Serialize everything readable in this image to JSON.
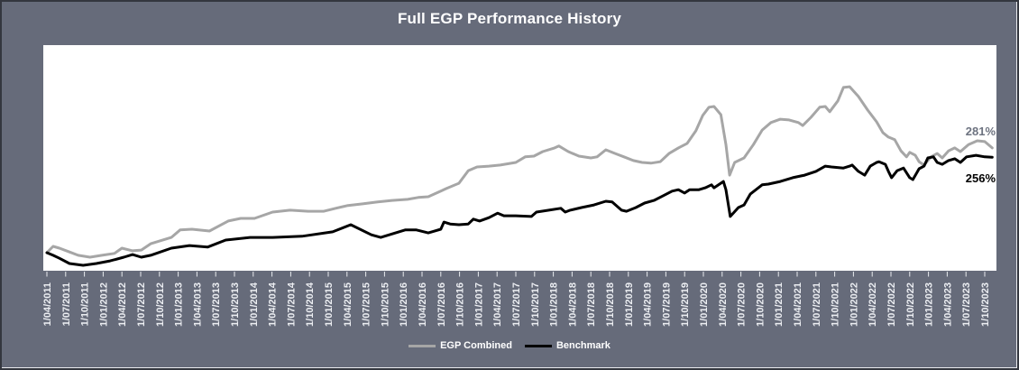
{
  "title": "Full EGP Performance History",
  "end_labels": {
    "egp_combined": "281%",
    "benchmark": "256%"
  },
  "legend": {
    "items": [
      {
        "label": "EGP Combined",
        "color": "#a6a6a6"
      },
      {
        "label": "Benchmark",
        "color": "#000000"
      }
    ]
  },
  "colors": {
    "background": "#666b7a",
    "plot_background": "#ffffff",
    "title_text": "#ffffff",
    "axis_label_text": "#eceef2",
    "tick_mark": "#e8eaee",
    "egp_line": "#a6a6a6",
    "benchmark_line": "#000000",
    "egp_end_label": "#6d7380",
    "frame_border": "#33363e"
  },
  "chart_data": {
    "type": "line",
    "title": "Full EGP Performance History",
    "xlabel": "",
    "ylabel": "",
    "grid": false,
    "y_axis_labels_visible": false,
    "legend_position": "bottom",
    "x_unit": "months since 1/04/2011",
    "x_range": [
      0,
      151.2
    ],
    "y_range_pct": [
      -48,
      557
    ],
    "x_tick_labels": [
      "1/04/2011",
      "1/07/2011",
      "1/10/2011",
      "1/01/2012",
      "1/04/2012",
      "1/07/2012",
      "1/10/2012",
      "1/01/2013",
      "1/04/2013",
      "1/07/2013",
      "1/10/2013",
      "1/01/2014",
      "1/04/2014",
      "1/07/2014",
      "1/10/2014",
      "1/01/2015",
      "1/04/2015",
      "1/07/2015",
      "1/10/2015",
      "1/01/2016",
      "1/04/2016",
      "1/07/2016",
      "1/10/2016",
      "1/01/2017",
      "1/04/2017",
      "1/07/2017",
      "1/10/2017",
      "1/01/2018",
      "1/04/2018",
      "1/07/2018",
      "1/10/2018",
      "1/01/2019",
      "1/04/2019",
      "1/07/2019",
      "1/10/2019",
      "1/01/2020",
      "1/04/2020",
      "1/07/2020",
      "1/10/2020",
      "1/01/2021",
      "1/04/2021",
      "1/07/2021",
      "1/10/2021",
      "1/01/2022",
      "1/04/2022",
      "1/07/2022",
      "1/10/2022",
      "1/01/2023",
      "1/04/2023",
      "1/07/2023",
      "1/10/2023"
    ],
    "series": [
      {
        "name": "EGP Combined",
        "color": "#a6a6a6",
        "end_label": "281%",
        "points": [
          [
            0,
            0
          ],
          [
            1,
            17
          ],
          [
            2,
            12
          ],
          [
            3.6,
            2
          ],
          [
            5,
            -7
          ],
          [
            6.9,
            -12
          ],
          [
            8.8,
            -7
          ],
          [
            10.8,
            -2
          ],
          [
            12,
            12
          ],
          [
            13.7,
            5
          ],
          [
            15.1,
            7
          ],
          [
            16.6,
            24
          ],
          [
            19.9,
            41
          ],
          [
            21.3,
            61
          ],
          [
            23.2,
            63
          ],
          [
            26,
            58
          ],
          [
            29,
            85
          ],
          [
            31,
            92
          ],
          [
            33.2,
            92
          ],
          [
            36.1,
            109
          ],
          [
            38.9,
            114
          ],
          [
            41.8,
            111
          ],
          [
            44.3,
            111
          ],
          [
            46.2,
            119
          ],
          [
            48,
            126
          ],
          [
            50.5,
            131
          ],
          [
            52.9,
            136
          ],
          [
            55.2,
            140
          ],
          [
            57.7,
            143
          ],
          [
            59.4,
            148
          ],
          [
            61,
            150
          ],
          [
            63,
            165
          ],
          [
            63.9,
            172
          ],
          [
            65.9,
            186
          ],
          [
            67.4,
            220
          ],
          [
            68.8,
            230
          ],
          [
            70.7,
            232
          ],
          [
            72.5,
            235
          ],
          [
            75,
            242
          ],
          [
            76.5,
            257
          ],
          [
            77.9,
            259
          ],
          [
            79.3,
            271
          ],
          [
            81.2,
            281
          ],
          [
            81.9,
            286
          ],
          [
            83.4,
            271
          ],
          [
            85.1,
            259
          ],
          [
            87,
            254
          ],
          [
            88,
            257
          ],
          [
            89.4,
            276
          ],
          [
            90.9,
            266
          ],
          [
            92.3,
            257
          ],
          [
            93.8,
            247
          ],
          [
            95.2,
            242
          ],
          [
            96.6,
            240
          ],
          [
            98.1,
            244
          ],
          [
            99.5,
            266
          ],
          [
            101,
            281
          ],
          [
            102.4,
            293
          ],
          [
            103.8,
            327
          ],
          [
            104.9,
            368
          ],
          [
            105.9,
            390
          ],
          [
            106.7,
            392
          ],
          [
            107.8,
            370
          ],
          [
            108.6,
            290
          ],
          [
            109.2,
            208
          ],
          [
            110,
            242
          ],
          [
            111.5,
            254
          ],
          [
            113,
            290
          ],
          [
            114.4,
            329
          ],
          [
            115.8,
            349
          ],
          [
            117.3,
            358
          ],
          [
            118.7,
            356
          ],
          [
            120.2,
            349
          ],
          [
            120.9,
            341
          ],
          [
            122.2,
            363
          ],
          [
            123.6,
            390
          ],
          [
            124.5,
            392
          ],
          [
            125.2,
            378
          ],
          [
            126.5,
            407
          ],
          [
            127.4,
            443
          ],
          [
            128.4,
            445
          ],
          [
            129.8,
            419
          ],
          [
            131.3,
            382
          ],
          [
            132.7,
            351
          ],
          [
            133.7,
            322
          ],
          [
            134.6,
            310
          ],
          [
            135.6,
            303
          ],
          [
            136.6,
            273
          ],
          [
            137.5,
            257
          ],
          [
            138,
            269
          ],
          [
            138.9,
            261
          ],
          [
            139.5,
            244
          ],
          [
            140.3,
            235
          ],
          [
            141.4,
            257
          ],
          [
            142.4,
            266
          ],
          [
            143.2,
            254
          ],
          [
            144.2,
            273
          ],
          [
            145.2,
            281
          ],
          [
            146.1,
            271
          ],
          [
            147.4,
            290
          ],
          [
            148.8,
            300
          ],
          [
            150,
            298
          ],
          [
            151.2,
            281
          ]
        ]
      },
      {
        "name": "Benchmark",
        "color": "#000000",
        "end_label": "256%",
        "points": [
          [
            0,
            0
          ],
          [
            1,
            -7
          ],
          [
            2,
            -15
          ],
          [
            3.6,
            -29
          ],
          [
            5.8,
            -34
          ],
          [
            7.9,
            -29
          ],
          [
            10.1,
            -22
          ],
          [
            12.3,
            -12
          ],
          [
            13.7,
            -5
          ],
          [
            15.1,
            -12
          ],
          [
            16.6,
            -7
          ],
          [
            19.9,
            12
          ],
          [
            22.8,
            19
          ],
          [
            25.7,
            15
          ],
          [
            28.6,
            34
          ],
          [
            32.5,
            41
          ],
          [
            36.1,
            41
          ],
          [
            40.8,
            44
          ],
          [
            45.7,
            56
          ],
          [
            48.6,
            75
          ],
          [
            51.9,
            48
          ],
          [
            53.4,
            41
          ],
          [
            57.3,
            61
          ],
          [
            59.1,
            61
          ],
          [
            61,
            53
          ],
          [
            63,
            63
          ],
          [
            63.5,
            82
          ],
          [
            64.5,
            77
          ],
          [
            65.9,
            75
          ],
          [
            67.4,
            77
          ],
          [
            68.2,
            90
          ],
          [
            69.2,
            85
          ],
          [
            70.7,
            94
          ],
          [
            72.1,
            106
          ],
          [
            73.1,
            99
          ],
          [
            75,
            99
          ],
          [
            77.5,
            97
          ],
          [
            78.3,
            109
          ],
          [
            80.3,
            114
          ],
          [
            82.2,
            119
          ],
          [
            82.9,
            109
          ],
          [
            83.7,
            114
          ],
          [
            85.5,
            121
          ],
          [
            87.5,
            128
          ],
          [
            89.4,
            138
          ],
          [
            90.4,
            136
          ],
          [
            91.9,
            114
          ],
          [
            92.7,
            111
          ],
          [
            94.2,
            121
          ],
          [
            95.6,
            133
          ],
          [
            97.1,
            140
          ],
          [
            98.5,
            152
          ],
          [
            100,
            165
          ],
          [
            101,
            169
          ],
          [
            102,
            160
          ],
          [
            102.8,
            169
          ],
          [
            104.3,
            169
          ],
          [
            105.3,
            174
          ],
          [
            106.3,
            182
          ],
          [
            106.7,
            174
          ],
          [
            108.2,
            191
          ],
          [
            108.6,
            169
          ],
          [
            109.3,
            97
          ],
          [
            110.6,
            121
          ],
          [
            111.5,
            128
          ],
          [
            112.5,
            157
          ],
          [
            114.4,
            182
          ],
          [
            115.4,
            184
          ],
          [
            117.3,
            191
          ],
          [
            119.3,
            201
          ],
          [
            121.2,
            208
          ],
          [
            123,
            218
          ],
          [
            124.5,
            232
          ],
          [
            125.5,
            230
          ],
          [
            127.4,
            227
          ],
          [
            128.4,
            232
          ],
          [
            128.8,
            235
          ],
          [
            129.8,
            218
          ],
          [
            130.8,
            208
          ],
          [
            131.7,
            232
          ],
          [
            132.7,
            242
          ],
          [
            133.1,
            244
          ],
          [
            134.1,
            237
          ],
          [
            134.6,
            218
          ],
          [
            135.1,
            201
          ],
          [
            136,
            220
          ],
          [
            137,
            227
          ],
          [
            138,
            201
          ],
          [
            138.5,
            196
          ],
          [
            139.5,
            225
          ],
          [
            140.3,
            232
          ],
          [
            140.9,
            254
          ],
          [
            141.8,
            257
          ],
          [
            142.4,
            242
          ],
          [
            143.2,
            237
          ],
          [
            144.2,
            247
          ],
          [
            145.2,
            252
          ],
          [
            146.1,
            242
          ],
          [
            147.1,
            257
          ],
          [
            148.6,
            261
          ],
          [
            150,
            257
          ],
          [
            151.2,
            256
          ]
        ]
      }
    ]
  }
}
